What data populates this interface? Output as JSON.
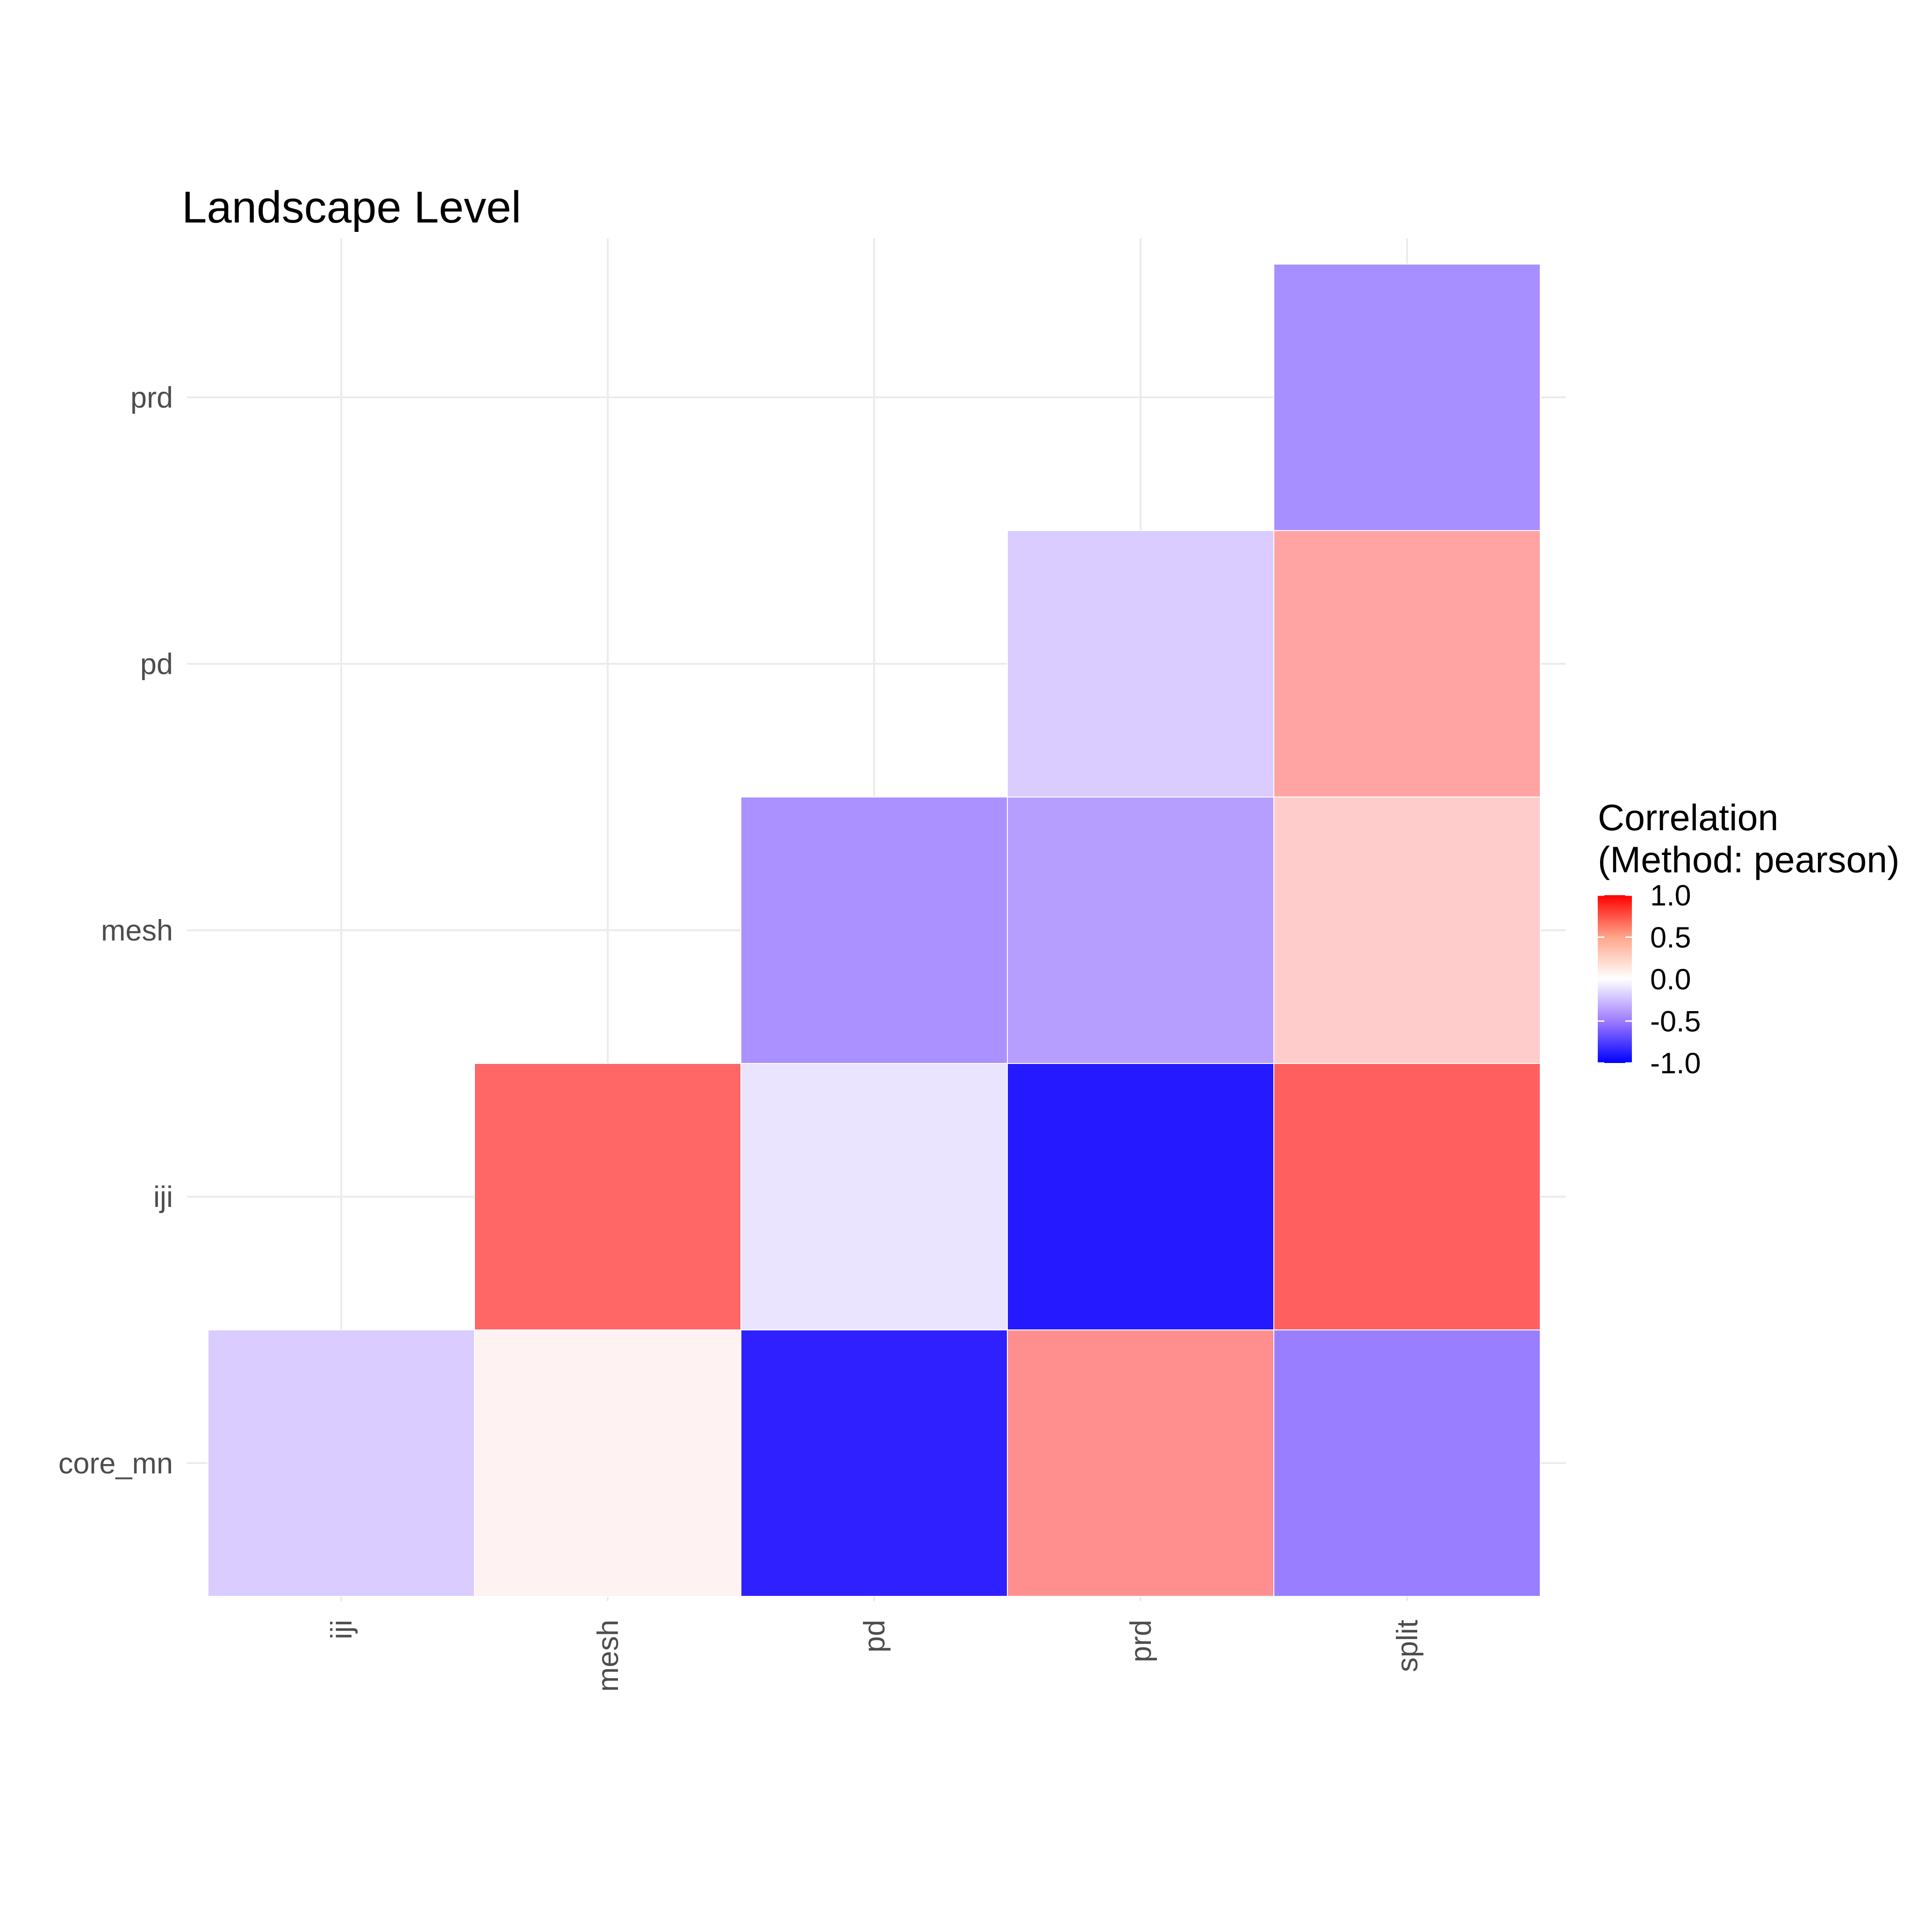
{
  "chart_data": {
    "type": "heatmap",
    "title": "Landscape Level",
    "xlabel": "",
    "ylabel": "",
    "x_categories": [
      "iji",
      "mesh",
      "pd",
      "prd",
      "split"
    ],
    "y_categories": [
      "core_mn",
      "iji",
      "mesh",
      "pd",
      "prd"
    ],
    "cells": [
      {
        "x": "iji",
        "y": "core_mn",
        "value": -0.15
      },
      {
        "x": "mesh",
        "y": "core_mn",
        "value": 0.03
      },
      {
        "x": "pd",
        "y": "core_mn",
        "value": -0.85
      },
      {
        "x": "prd",
        "y": "core_mn",
        "value": 0.38
      },
      {
        "x": "split",
        "y": "core_mn",
        "value": -0.45
      },
      {
        "x": "mesh",
        "y": "iji",
        "value": 0.55
      },
      {
        "x": "pd",
        "y": "iji",
        "value": -0.07
      },
      {
        "x": "prd",
        "y": "iji",
        "value": -0.88
      },
      {
        "x": "split",
        "y": "iji",
        "value": 0.58
      },
      {
        "x": "pd",
        "y": "mesh",
        "value": -0.37
      },
      {
        "x": "prd",
        "y": "mesh",
        "value": -0.32
      },
      {
        "x": "split",
        "y": "mesh",
        "value": 0.15
      },
      {
        "x": "prd",
        "y": "pd",
        "value": -0.15
      },
      {
        "x": "split",
        "y": "pd",
        "value": 0.3
      },
      {
        "x": "split",
        "y": "prd",
        "value": -0.38
      }
    ],
    "color_scale": {
      "low": "#0000FF",
      "mid": "#FFFFFF",
      "high": "#FF0000",
      "limits": [
        -1,
        1
      ]
    },
    "legend": {
      "title_line1": "Correlation",
      "title_line2": "(Method: pearson)",
      "placement": "right",
      "labels": [
        "1.0",
        "0.5",
        "0.0",
        "-0.5",
        "-1.0"
      ],
      "values": [
        1.0,
        0.5,
        0.0,
        -0.5,
        -1.0
      ]
    },
    "grid": true
  },
  "colors": {
    "grid": "#ebebeb",
    "tick_text": "#4d4d4d",
    "background": "#ffffff"
  }
}
